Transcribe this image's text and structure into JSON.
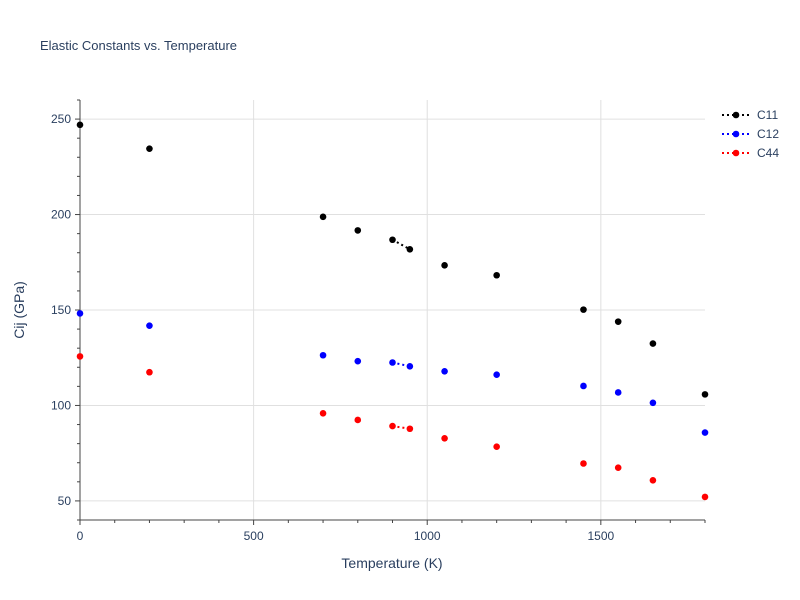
{
  "chart_data": {
    "type": "scatter",
    "title": "Elastic Constants vs. Temperature",
    "xlabel": "Temperature (K)",
    "ylabel": "Cij (GPa)",
    "xlim": [
      0,
      1800
    ],
    "ylim": [
      40,
      260
    ],
    "x_ticks": [
      0,
      500,
      1000,
      1500
    ],
    "y_ticks": [
      50,
      100,
      150,
      200,
      250
    ],
    "grid": true,
    "legend_position": "top-right",
    "x": [
      0,
      200,
      700,
      800,
      900,
      950,
      1050,
      1200,
      1450,
      1550,
      1650,
      1800
    ],
    "series": [
      {
        "name": "C11",
        "color": "#000000",
        "values": [
          247,
          234.5,
          198.8,
          191.7,
          186.8,
          181.8,
          173.4,
          168.2,
          150.2,
          143.9,
          132.4,
          105.8
        ]
      },
      {
        "name": "C12",
        "color": "#0000ff",
        "values": [
          148.2,
          141.8,
          126.3,
          123.2,
          122.5,
          120.5,
          117.9,
          116.1,
          110.2,
          106.8,
          101.4,
          85.8
        ]
      },
      {
        "name": "C44",
        "color": "#ff0000",
        "values": [
          125.7,
          117.4,
          95.9,
          92.4,
          89.2,
          87.8,
          82.8,
          78.4,
          69.6,
          67.4,
          60.8,
          52.1
        ]
      }
    ],
    "dotted_connection_x": [
      900,
      950
    ]
  }
}
